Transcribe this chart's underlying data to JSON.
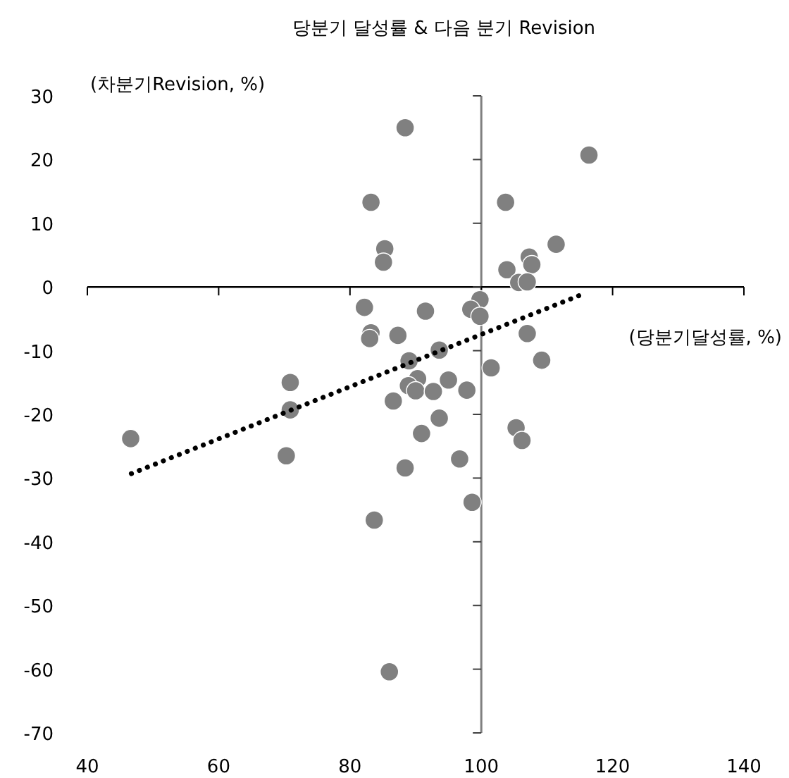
{
  "chart_data": {
    "type": "scatter",
    "title": "당분기 달성률 & 다음 분기 Revision",
    "xlabel": "(당분기달성률, %)",
    "ylabel": "(차분기Revision, %)",
    "xlim": [
      40,
      140
    ],
    "xticks": [
      40,
      60,
      80,
      100,
      120,
      140
    ],
    "ylim": [
      -70,
      30
    ],
    "yticks": [
      -70,
      -60,
      -50,
      -40,
      -30,
      -20,
      -10,
      0,
      10,
      20,
      30
    ],
    "grid": false,
    "ref_lines": [
      {
        "axis": "x",
        "value": 100,
        "color": "#808080"
      },
      {
        "axis": "y",
        "value": 0,
        "color": "#000000"
      }
    ],
    "series": [
      {
        "marker": "circle",
        "color": "#808080",
        "x": [
          88.4,
          83.2,
          85.3,
          85.1,
          103.7,
          111.4,
          107.3,
          107.7,
          103.9,
          105.7,
          107.0,
          116.4,
          82.2,
          91.5,
          99.8,
          98.4,
          99.8,
          83.2,
          83.0,
          87.3,
          107.0,
          89.0,
          93.6,
          101.5,
          109.2,
          90.3,
          88.9,
          90.0,
          92.7,
          95.0,
          97.8,
          86.6,
          93.6,
          90.9,
          105.3,
          106.2,
          96.7,
          88.4,
          98.6,
          83.7,
          86.0,
          70.9,
          70.9,
          70.3,
          46.6
        ],
        "values": [
          25,
          13.3,
          6.0,
          3.9,
          13.3,
          6.7,
          4.7,
          3.5,
          2.7,
          0.7,
          0.8,
          20.7,
          -3.2,
          -3.8,
          -2.0,
          -3.5,
          -4.6,
          -7.2,
          -8.1,
          -7.6,
          -7.3,
          -11.6,
          -9.9,
          -12.7,
          -11.5,
          -14.4,
          -15.5,
          -16.3,
          -16.4,
          -14.6,
          -16.2,
          -17.9,
          -20.6,
          -23.0,
          -22.1,
          -24.1,
          -27.0,
          -28.4,
          -33.8,
          -36.6,
          -60.4,
          -15.0,
          -19.3,
          -26.5,
          -23.8
        ]
      },
      {
        "type": "line",
        "line_style": "dotted",
        "color": "#000000",
        "x": [
          46.7,
          116.0
        ],
        "values": [
          -29.3,
          -0.9
        ]
      }
    ]
  }
}
